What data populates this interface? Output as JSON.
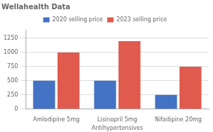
{
  "chart_data": {
    "type": "bar",
    "title": "Wellahealth Data",
    "xlabel": "Antihypertensives",
    "categories": [
      "Amlodipine 5mg",
      "Lisinopril 5mg",
      "Nifadipine 20mg"
    ],
    "series": [
      {
        "name": "2020 selling price",
        "color": "#4472C4",
        "values": [
          500,
          500,
          250
        ]
      },
      {
        "name": "2023 selling price",
        "color": "#E05A4E",
        "values": [
          1000,
          1200,
          750
        ]
      }
    ],
    "ylim": [
      0,
      1400
    ],
    "yticks": [
      0,
      250,
      500,
      750,
      1000,
      1250
    ],
    "grid": true,
    "legend": "top"
  }
}
